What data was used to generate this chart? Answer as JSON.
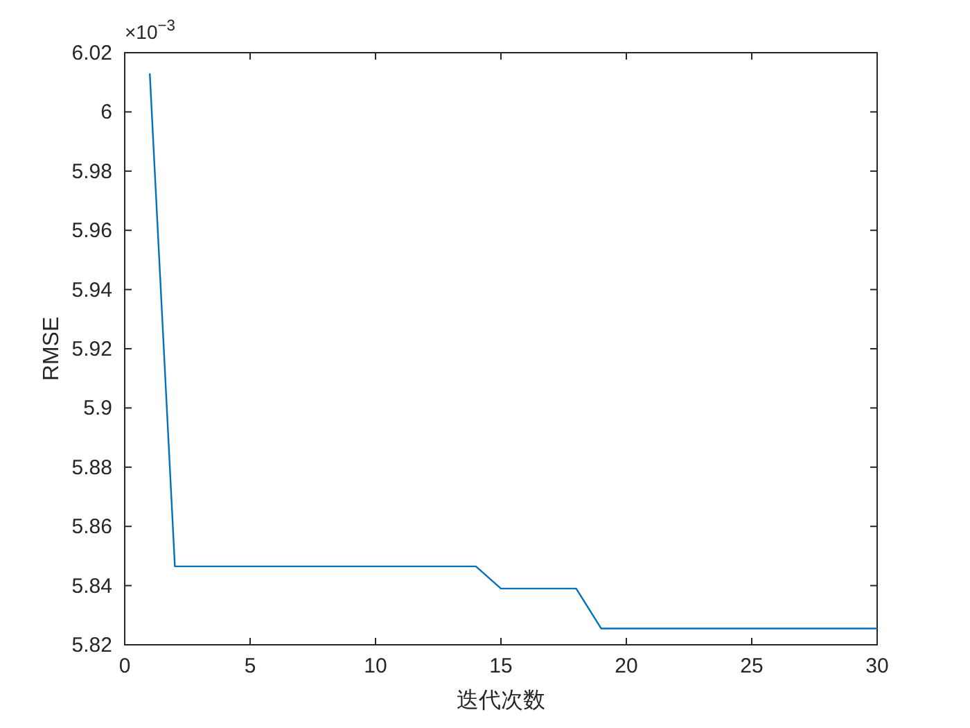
{
  "chart_data": {
    "type": "line",
    "xlabel": "迭代次数",
    "ylabel": "RMSE",
    "annotations": [
      "×10$^{−3}$"
    ],
    "x": [
      1,
      2,
      3,
      4,
      5,
      6,
      7,
      8,
      9,
      10,
      11,
      12,
      13,
      14,
      15,
      16,
      17,
      18,
      19,
      20,
      21,
      22,
      23,
      24,
      25,
      26,
      27,
      28,
      29,
      30
    ],
    "series": [
      {
        "color": "#0072bd",
        "values": [
          6.013,
          5.8465,
          5.8465,
          5.8465,
          5.8465,
          5.8465,
          5.8465,
          5.8465,
          5.8465,
          5.8465,
          5.8465,
          5.8465,
          5.8465,
          5.8465,
          5.839,
          5.839,
          5.839,
          5.839,
          5.8255,
          5.8255,
          5.8255,
          5.8255,
          5.8255,
          5.8255,
          5.8255,
          5.8255,
          5.8255,
          5.8255,
          5.8255,
          5.8255
        ]
      }
    ],
    "xlim": [
      0,
      30
    ],
    "xticks": [
      0,
      5,
      10,
      15,
      20,
      25,
      30
    ],
    "ylim": [
      5.82,
      6.02
    ],
    "yticks": [
      5.82,
      5.84,
      5.86,
      5.88,
      5.9,
      5.92,
      5.94,
      5.96,
      5.98,
      6,
      6.02
    ],
    "grid": false,
    "marker": "none",
    "line_style": "solid"
  }
}
